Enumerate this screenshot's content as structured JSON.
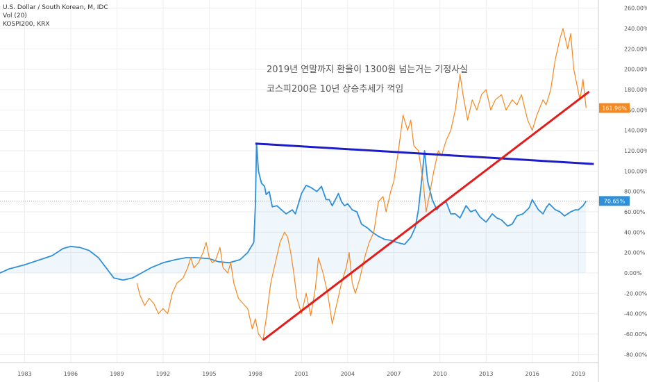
{
  "legend": {
    "symbol": "U.S. Dollar / South Korean, M, IDC",
    "volume": "Vol (20)",
    "compare": "KOSPI200, KRX"
  },
  "annotations": {
    "line1": "2019년 연말까지 환율이 1300원 넘는거는 기정사실",
    "line2": "코스피200은 10년 상승추세가 꺽임"
  },
  "price_labels": {
    "usdkrw": "70.65%",
    "kospi": "161.96%"
  },
  "colors": {
    "usdkrw": "#2f8fd8",
    "kospi": "#f5871f",
    "trend_blue": "#1d1dc8",
    "trend_red": "#e31b1b",
    "grid": "#eeeeee",
    "axis_text": "#555555"
  },
  "chart_data": {
    "type": "line",
    "title": "",
    "xlabel": "",
    "ylabel": "",
    "y_unit": "%",
    "xlim": [
      1981.4,
      2020.3
    ],
    "ylim": [
      -88,
      268
    ],
    "yticks": [
      260,
      240,
      220,
      200,
      180,
      160,
      140,
      120,
      100,
      80,
      60,
      40,
      20,
      0,
      -20,
      -40,
      -60,
      -80
    ],
    "ytick_labels": [
      "260.00%",
      "240.00%",
      "220.00%",
      "200.00%",
      "180.00%",
      "160.00%",
      "140.00%",
      "120.00%",
      "100.00%",
      "80.00%",
      "60.00%",
      "40.00%",
      "20.00%",
      "0.00%",
      "-20.00%",
      "-40.00%",
      "-60.00%",
      "-80.00%"
    ],
    "xticks": [
      1983,
      1986,
      1989,
      1992,
      1995,
      1998,
      2001,
      2004,
      2007,
      2010,
      2013,
      2016,
      2019
    ],
    "xtick_labels": [
      "1983",
      "1986",
      "1989",
      "1992",
      "1995",
      "1998",
      "2001",
      "2004",
      "2007",
      "2010",
      "2013",
      "2016",
      "2019"
    ],
    "series": [
      {
        "name": "U.S. Dollar / South Korean",
        "color": "#2f8fd8",
        "fill": true,
        "points": [
          [
            1981.4,
            0
          ],
          [
            1982.0,
            4
          ],
          [
            1983.0,
            8
          ],
          [
            1984.0,
            13
          ],
          [
            1984.8,
            17
          ],
          [
            1985.5,
            24
          ],
          [
            1986.0,
            26
          ],
          [
            1986.6,
            25
          ],
          [
            1987.2,
            22
          ],
          [
            1987.8,
            15
          ],
          [
            1988.3,
            5
          ],
          [
            1988.8,
            -5
          ],
          [
            1989.4,
            -7
          ],
          [
            1990.0,
            -5
          ],
          [
            1990.6,
            0
          ],
          [
            1991.2,
            5
          ],
          [
            1992.0,
            10
          ],
          [
            1992.8,
            13
          ],
          [
            1993.5,
            15
          ],
          [
            1994.2,
            15
          ],
          [
            1995.0,
            14
          ],
          [
            1995.6,
            11
          ],
          [
            1996.3,
            10
          ],
          [
            1997.0,
            13
          ],
          [
            1997.5,
            20
          ],
          [
            1997.9,
            30
          ],
          [
            1998.0,
            65
          ],
          [
            1998.08,
            127
          ],
          [
            1998.2,
            100
          ],
          [
            1998.4,
            88
          ],
          [
            1998.6,
            85
          ],
          [
            1998.7,
            77
          ],
          [
            1998.9,
            80
          ],
          [
            1999.1,
            65
          ],
          [
            1999.4,
            66
          ],
          [
            1999.7,
            62
          ],
          [
            2000.0,
            58
          ],
          [
            2000.4,
            62
          ],
          [
            2000.6,
            58
          ],
          [
            2000.8,
            68
          ],
          [
            2001.0,
            78
          ],
          [
            2001.3,
            86
          ],
          [
            2001.6,
            84
          ],
          [
            2002.0,
            80
          ],
          [
            2002.3,
            85
          ],
          [
            2002.6,
            72
          ],
          [
            2002.8,
            72
          ],
          [
            2003.0,
            66
          ],
          [
            2003.4,
            78
          ],
          [
            2003.6,
            70
          ],
          [
            2003.8,
            66
          ],
          [
            2004.0,
            68
          ],
          [
            2004.3,
            62
          ],
          [
            2004.6,
            60
          ],
          [
            2004.9,
            48
          ],
          [
            2005.3,
            44
          ],
          [
            2005.6,
            40
          ],
          [
            2006.0,
            36
          ],
          [
            2006.4,
            33
          ],
          [
            2006.8,
            32
          ],
          [
            2007.2,
            30
          ],
          [
            2007.7,
            28
          ],
          [
            2008.1,
            35
          ],
          [
            2008.4,
            45
          ],
          [
            2008.6,
            62
          ],
          [
            2008.8,
            90
          ],
          [
            2009.0,
            120
          ],
          [
            2009.2,
            90
          ],
          [
            2009.5,
            72
          ],
          [
            2009.8,
            62
          ],
          [
            2010.0,
            66
          ],
          [
            2010.4,
            70
          ],
          [
            2010.7,
            58
          ],
          [
            2011.0,
            58
          ],
          [
            2011.3,
            54
          ],
          [
            2011.7,
            66
          ],
          [
            2012.0,
            60
          ],
          [
            2012.3,
            62
          ],
          [
            2012.6,
            55
          ],
          [
            2013.0,
            50
          ],
          [
            2013.4,
            58
          ],
          [
            2013.7,
            54
          ],
          [
            2014.0,
            52
          ],
          [
            2014.4,
            46
          ],
          [
            2014.7,
            48
          ],
          [
            2015.0,
            56
          ],
          [
            2015.4,
            58
          ],
          [
            2015.8,
            64
          ],
          [
            2016.0,
            72
          ],
          [
            2016.4,
            62
          ],
          [
            2016.7,
            58
          ],
          [
            2016.9,
            64
          ],
          [
            2017.1,
            68
          ],
          [
            2017.5,
            62
          ],
          [
            2017.8,
            60
          ],
          [
            2018.1,
            56
          ],
          [
            2018.5,
            60
          ],
          [
            2018.8,
            62
          ],
          [
            2019.0,
            62
          ],
          [
            2019.3,
            66
          ],
          [
            2019.5,
            70.65
          ]
        ]
      },
      {
        "name": "KOSPI200, KRX",
        "color": "#f5871f",
        "fill": false,
        "points": [
          [
            1990.3,
            -10
          ],
          [
            1990.5,
            -22
          ],
          [
            1990.8,
            -32
          ],
          [
            1991.1,
            -25
          ],
          [
            1991.4,
            -30
          ],
          [
            1991.7,
            -40
          ],
          [
            1992.0,
            -35
          ],
          [
            1992.3,
            -40
          ],
          [
            1992.6,
            -20
          ],
          [
            1992.9,
            -10
          ],
          [
            1993.3,
            -5
          ],
          [
            1993.6,
            5
          ],
          [
            1993.8,
            15
          ],
          [
            1994.0,
            5
          ],
          [
            1994.3,
            10
          ],
          [
            1994.6,
            20
          ],
          [
            1994.8,
            30
          ],
          [
            1995.0,
            15
          ],
          [
            1995.2,
            10
          ],
          [
            1995.4,
            12
          ],
          [
            1995.7,
            25
          ],
          [
            1995.9,
            5
          ],
          [
            1996.2,
            0
          ],
          [
            1996.4,
            10
          ],
          [
            1996.6,
            -10
          ],
          [
            1996.9,
            -25
          ],
          [
            1997.2,
            -30
          ],
          [
            1997.5,
            -35
          ],
          [
            1997.8,
            -55
          ],
          [
            1998.0,
            -45
          ],
          [
            1998.2,
            -60
          ],
          [
            1998.5,
            -66
          ],
          [
            1998.7,
            -45
          ],
          [
            1999.0,
            -10
          ],
          [
            1999.3,
            10
          ],
          [
            1999.6,
            30
          ],
          [
            1999.9,
            40
          ],
          [
            2000.1,
            35
          ],
          [
            2000.3,
            20
          ],
          [
            2000.5,
            0
          ],
          [
            2000.7,
            -25
          ],
          [
            2001.0,
            -40
          ],
          [
            2001.3,
            -20
          ],
          [
            2001.6,
            -42
          ],
          [
            2001.9,
            -15
          ],
          [
            2002.1,
            15
          ],
          [
            2002.4,
            0
          ],
          [
            2002.7,
            -20
          ],
          [
            2003.0,
            -50
          ],
          [
            2003.3,
            -30
          ],
          [
            2003.6,
            -10
          ],
          [
            2003.9,
            5
          ],
          [
            2004.1,
            20
          ],
          [
            2004.3,
            -10
          ],
          [
            2004.5,
            -20
          ],
          [
            2004.8,
            -5
          ],
          [
            2005.1,
            15
          ],
          [
            2005.4,
            30
          ],
          [
            2005.7,
            40
          ],
          [
            2006.0,
            70
          ],
          [
            2006.3,
            75
          ],
          [
            2006.5,
            60
          ],
          [
            2006.8,
            80
          ],
          [
            2007.0,
            90
          ],
          [
            2007.3,
            120
          ],
          [
            2007.6,
            155
          ],
          [
            2007.9,
            140
          ],
          [
            2008.1,
            150
          ],
          [
            2008.3,
            125
          ],
          [
            2008.6,
            120
          ],
          [
            2008.9,
            90
          ],
          [
            2009.1,
            60
          ],
          [
            2009.3,
            75
          ],
          [
            2009.6,
            100
          ],
          [
            2009.9,
            120
          ],
          [
            2010.1,
            115
          ],
          [
            2010.4,
            130
          ],
          [
            2010.7,
            140
          ],
          [
            2011.0,
            160
          ],
          [
            2011.3,
            195
          ],
          [
            2011.5,
            175
          ],
          [
            2011.8,
            150
          ],
          [
            2012.1,
            170
          ],
          [
            2012.4,
            160
          ],
          [
            2012.7,
            175
          ],
          [
            2013.0,
            180
          ],
          [
            2013.3,
            160
          ],
          [
            2013.6,
            170
          ],
          [
            2014.0,
            175
          ],
          [
            2014.3,
            160
          ],
          [
            2014.7,
            170
          ],
          [
            2015.0,
            165
          ],
          [
            2015.3,
            175
          ],
          [
            2015.7,
            150
          ],
          [
            2016.0,
            140
          ],
          [
            2016.3,
            155
          ],
          [
            2016.7,
            170
          ],
          [
            2016.9,
            165
          ],
          [
            2017.2,
            180
          ],
          [
            2017.5,
            210
          ],
          [
            2017.8,
            230
          ],
          [
            2018.0,
            240
          ],
          [
            2018.3,
            220
          ],
          [
            2018.5,
            235
          ],
          [
            2018.7,
            200
          ],
          [
            2018.9,
            185
          ],
          [
            2019.1,
            170
          ],
          [
            2019.3,
            190
          ],
          [
            2019.5,
            161.96
          ]
        ]
      }
    ],
    "trendlines": [
      {
        "name": "blue-trendline",
        "color": "#1d1dc8",
        "from": [
          1998.0,
          127
        ],
        "to": [
          2020.0,
          107
        ]
      },
      {
        "name": "red-trendline",
        "color": "#e31b1b",
        "from": [
          1998.5,
          -66
        ],
        "to": [
          2019.7,
          178
        ]
      }
    ]
  }
}
